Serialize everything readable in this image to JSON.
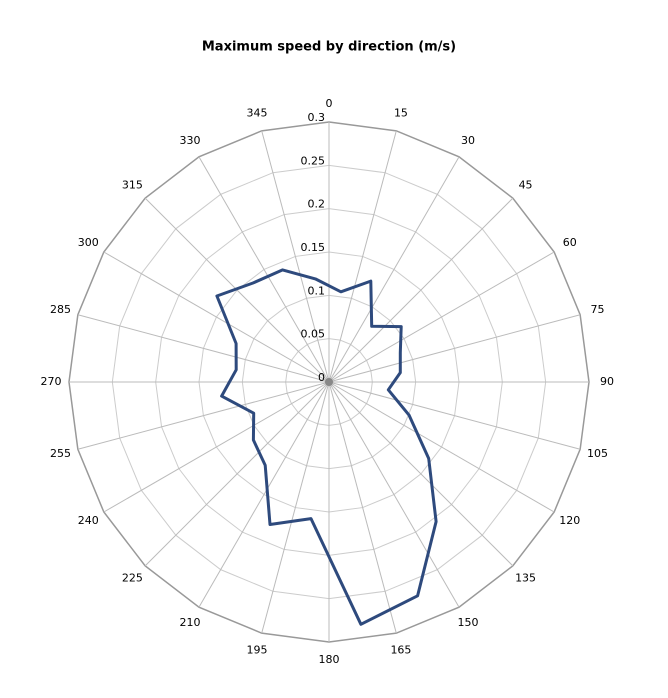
{
  "chart_data": {
    "type": "radar",
    "title": "Maximum speed by direction  (m/s)",
    "x": [
      7.5,
      22.5,
      37.5,
      52.5,
      67.5,
      82.5,
      97.5,
      112.5,
      127.5,
      142.5,
      157.5,
      172.5,
      187.5,
      202.5,
      217.5,
      232.5,
      247.5,
      262.5,
      277.5,
      292.5,
      307.5,
      322.5,
      337.5,
      352.5
    ],
    "values": [
      0.105,
      0.126,
      0.081,
      0.105,
      0.089,
      0.083,
      0.069,
      0.1,
      0.145,
      0.203,
      0.267,
      0.282,
      0.159,
      0.178,
      0.121,
      0.11,
      0.094,
      0.125,
      0.108,
      0.116,
      0.163,
      0.144,
      0.14,
      0.12
    ],
    "color": "#2e4a7d",
    "xlim": [
      0,
      360
    ],
    "xticks": [
      0,
      15,
      30,
      45,
      60,
      75,
      90,
      105,
      120,
      135,
      150,
      165,
      180,
      195,
      210,
      225,
      240,
      255,
      270,
      285,
      300,
      315,
      330,
      345
    ],
    "ylim": [
      0,
      0.3
    ],
    "yticks": [
      0,
      0.05,
      0.1,
      0.15,
      0.2,
      0.25,
      0.3
    ],
    "grid": true
  }
}
